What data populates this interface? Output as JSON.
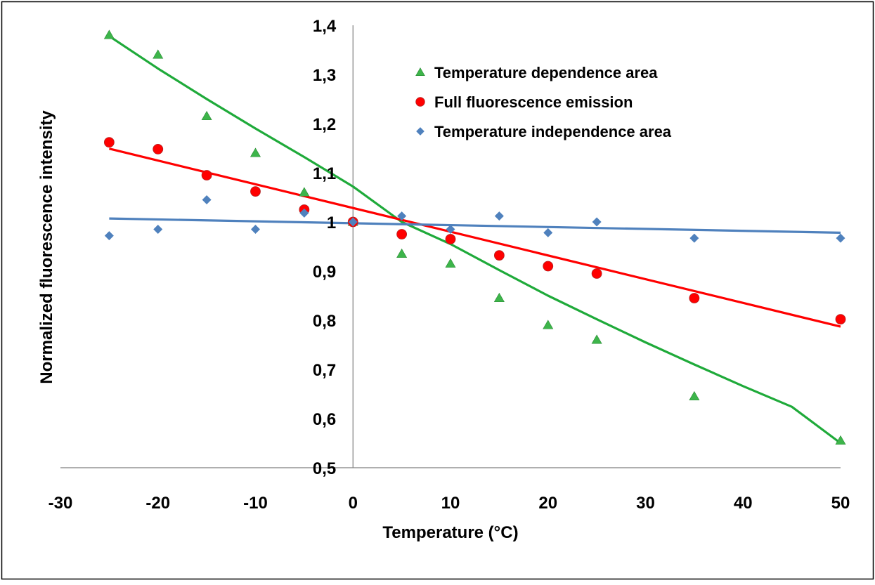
{
  "chart_data": {
    "type": "scatter",
    "title": "",
    "xlabel": "Temperature (°C)",
    "ylabel": "Normalized fluorescence intensity",
    "xlim": [
      -30,
      50
    ],
    "ylim": [
      0.5,
      1.4
    ],
    "x_ticks": [
      -30,
      -20,
      -10,
      0,
      10,
      20,
      30,
      40,
      50
    ],
    "x_tick_labels": [
      "-30",
      "-20",
      "-10",
      "0",
      "10",
      "20",
      "30",
      "40",
      "50"
    ],
    "y_ticks": [
      0.5,
      0.6,
      0.7,
      0.8,
      0.9,
      1.0,
      1.1,
      1.2,
      1.3,
      1.4
    ],
    "y_tick_labels": [
      "0,5",
      "0,6",
      "0,7",
      "0,8",
      "0,9",
      "1",
      "1,1",
      "1,2",
      "1,3",
      "1,4"
    ],
    "grid": false,
    "legend_position": "top-right",
    "series": [
      {
        "name": "Temperature dependence area",
        "marker": "triangle",
        "color": "#3db54a",
        "line_color": "#1faa3a",
        "x": [
          -25,
          -20,
          -15,
          -10,
          -5,
          0,
          5,
          10,
          15,
          20,
          25,
          35,
          50
        ],
        "y": [
          1.38,
          1.34,
          1.215,
          1.14,
          1.06,
          1.0,
          0.935,
          0.915,
          0.845,
          0.79,
          0.76,
          0.645,
          0.555
        ],
        "trend": {
          "x": [
            -25,
            -20,
            -15,
            -10,
            -5,
            0,
            5,
            10,
            15,
            20,
            25,
            30,
            35,
            40,
            45,
            50
          ],
          "y": [
            1.378,
            1.312,
            1.25,
            1.19,
            1.132,
            1.072,
            1.0,
            0.955,
            0.902,
            0.85,
            0.802,
            0.755,
            0.71,
            0.666,
            0.624,
            0.55
          ]
        }
      },
      {
        "name": "Full fluorescence emission",
        "marker": "circle",
        "color": "#ff0000",
        "line_color": "#ff0000",
        "x": [
          -25,
          -20,
          -15,
          -10,
          -5,
          0,
          5,
          10,
          15,
          20,
          25,
          35,
          50
        ],
        "y": [
          1.162,
          1.148,
          1.095,
          1.062,
          1.025,
          1.0,
          0.975,
          0.965,
          0.932,
          0.91,
          0.895,
          0.845,
          0.802
        ],
        "trend": {
          "x": [
            -25,
            50
          ],
          "y": [
            1.149,
            0.787
          ]
        }
      },
      {
        "name": "Temperature independence area",
        "marker": "diamond",
        "color": "#4f81bd",
        "line_color": "#4f81bd",
        "x": [
          -25,
          -20,
          -15,
          -10,
          -5,
          0,
          5,
          10,
          15,
          20,
          25,
          35,
          50
        ],
        "y": [
          0.972,
          0.985,
          1.045,
          0.985,
          1.018,
          1.0,
          1.012,
          0.985,
          1.012,
          0.978,
          1.0,
          0.967,
          0.967
        ],
        "trend": {
          "x": [
            -25,
            50
          ],
          "y": [
            1.007,
            0.978
          ]
        }
      }
    ]
  }
}
